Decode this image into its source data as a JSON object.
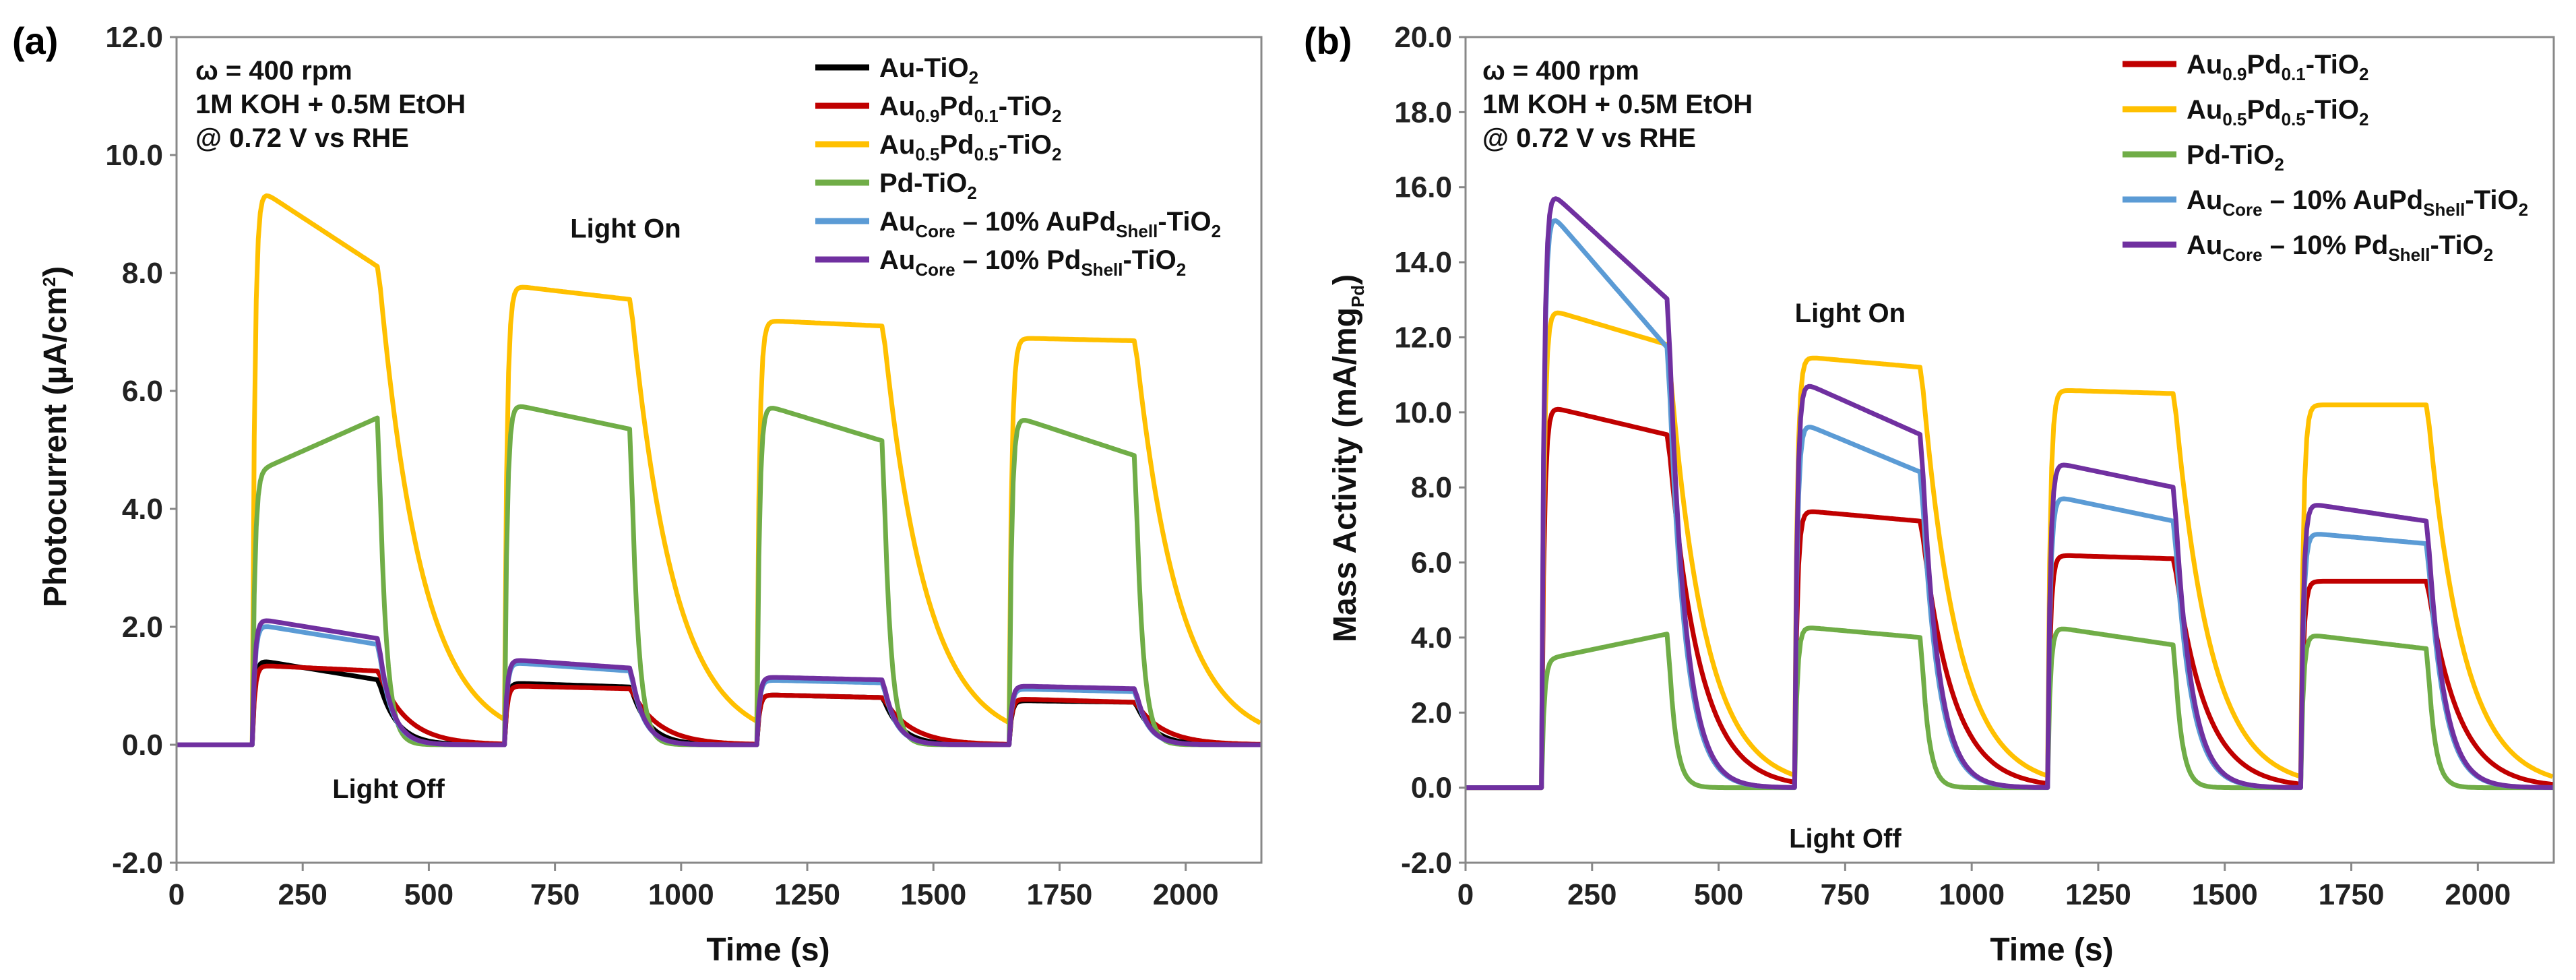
{
  "chart_data": [
    {
      "type": "line",
      "panel": "(a)",
      "xlabel": "Time (s)",
      "ylabel": "Photocurrent (µA/cm²)",
      "xlim": [
        0,
        2150
      ],
      "ylim": [
        -2.0,
        12.0
      ],
      "x_ticks": [
        "0",
        "250",
        "500",
        "750",
        "1000",
        "1250",
        "1500",
        "1750",
        "2000"
      ],
      "y_ticks": [
        "-2.0",
        "0.0",
        "2.0",
        "4.0",
        "6.0",
        "8.0",
        "10.0",
        "12.0"
      ],
      "conditions": [
        "ω = 400 rpm",
        "1M KOH + 0.5M EtOH",
        "@ 0.72 V vs RHE"
      ],
      "annotations": [
        {
          "text": "Light On",
          "x": 890,
          "y": 8.6
        },
        {
          "text": "Light Off",
          "x": 420,
          "y": -0.9
        }
      ],
      "light_on_intervals": [
        [
          150,
          400
        ],
        [
          650,
          900
        ],
        [
          1150,
          1400
        ],
        [
          1650,
          1900
        ]
      ],
      "legend_position": "top-right",
      "series": [
        {
          "name": "Au-TiO2",
          "legend": [
            [
              "Au-TiO",
              ""
            ],
            [
              "2",
              "sub"
            ]
          ],
          "color": "#000000",
          "tau": 35,
          "plateaus": [
            [
              1.45,
              1.1
            ],
            [
              1.05,
              0.98
            ],
            [
              0.85,
              0.8
            ],
            [
              0.75,
              0.72
            ]
          ]
        },
        {
          "name": "Au0.9Pd0.1-TiO2",
          "legend": [
            [
              "Au",
              ""
            ],
            [
              "0.9",
              "sub"
            ],
            [
              "Pd",
              ""
            ],
            [
              "0.1",
              "sub"
            ],
            [
              "-TiO",
              ""
            ],
            [
              "2",
              "sub"
            ]
          ],
          "color": "#c00000",
          "tau": 55,
          "plateaus": [
            [
              1.35,
              1.25
            ],
            [
              1.0,
              0.95
            ],
            [
              0.85,
              0.8
            ],
            [
              0.78,
              0.72
            ]
          ]
        },
        {
          "name": "Au0.5Pd0.5-TiO2",
          "legend": [
            [
              "Au",
              ""
            ],
            [
              "0.5",
              "sub"
            ],
            [
              "Pd",
              ""
            ],
            [
              "0.5",
              "sub"
            ],
            [
              "-TiO",
              ""
            ],
            [
              "2",
              "sub"
            ]
          ],
          "color": "#ffc000",
          "tau": 85,
          "plateaus": [
            [
              9.5,
              8.1
            ],
            [
              7.8,
              7.55
            ],
            [
              7.2,
              7.1
            ],
            [
              6.9,
              6.85
            ]
          ]
        },
        {
          "name": "Pd-TiO2",
          "legend": [
            [
              "Pd-TiO",
              ""
            ],
            [
              "2",
              "sub"
            ]
          ],
          "color": "#70ad47",
          "tau": 14,
          "plateaus": [
            [
              4.6,
              5.55
            ],
            [
              5.8,
              5.35
            ],
            [
              5.8,
              5.15
            ],
            [
              5.6,
              4.9
            ]
          ]
        },
        {
          "name": "AuCore – 10% AuPdShell-TiO2",
          "legend": [
            [
              "Au",
              ""
            ],
            [
              "Core",
              "sub"
            ],
            [
              " – 10% AuPd",
              ""
            ],
            [
              "Shell",
              "sub"
            ],
            [
              "-TiO",
              ""
            ],
            [
              "2",
              "sub"
            ]
          ],
          "color": "#5b9bd5",
          "tau": 25,
          "plateaus": [
            [
              2.05,
              1.7
            ],
            [
              1.4,
              1.25
            ],
            [
              1.1,
              1.05
            ],
            [
              0.95,
              0.9
            ]
          ]
        },
        {
          "name": "AuCore – 10% PdShell-TiO2",
          "legend": [
            [
              "Au",
              ""
            ],
            [
              "Core",
              "sub"
            ],
            [
              " – 10% Pd",
              ""
            ],
            [
              "Shell",
              "sub"
            ],
            [
              "-TiO",
              ""
            ],
            [
              "2",
              "sub"
            ]
          ],
          "color": "#7030a0",
          "tau": 25,
          "plateaus": [
            [
              2.15,
              1.8
            ],
            [
              1.45,
              1.3
            ],
            [
              1.15,
              1.1
            ],
            [
              1.0,
              0.95
            ]
          ]
        }
      ]
    },
    {
      "type": "line",
      "panel": "(b)",
      "xlabel": "Time (s)",
      "ylabel": "Mass Activity (mA/mgPd)",
      "xlim": [
        0,
        2150
      ],
      "ylim": [
        -2.0,
        20.0
      ],
      "x_ticks": [
        "0",
        "250",
        "500",
        "750",
        "1000",
        "1250",
        "1500",
        "1750",
        "2000"
      ],
      "y_ticks": [
        "-2.0",
        "0.0",
        "2.0",
        "4.0",
        "6.0",
        "8.0",
        "10.0",
        "12.0",
        "14.0",
        "16.0",
        "18.0",
        "20.0"
      ],
      "conditions": [
        "ω = 400 rpm",
        "1M KOH + 0.5M EtOH",
        "@ 0.72 V vs RHE"
      ],
      "annotations": [
        {
          "text": "Light On",
          "x": 760,
          "y": 12.4
        },
        {
          "text": "Light Off",
          "x": 750,
          "y": -1.6
        }
      ],
      "light_on_intervals": [
        [
          150,
          400
        ],
        [
          650,
          900
        ],
        [
          1150,
          1400
        ],
        [
          1650,
          1900
        ]
      ],
      "legend_position": "top-right",
      "series": [
        {
          "name": "Au0.9Pd0.1-TiO2",
          "legend": [
            [
              "Au",
              ""
            ],
            [
              "0.9",
              "sub"
            ],
            [
              "Pd",
              ""
            ],
            [
              "0.1",
              "sub"
            ],
            [
              "-TiO",
              ""
            ],
            [
              "2",
              "sub"
            ]
          ],
          "color": "#c00000",
          "tau": 60,
          "plateaus": [
            [
              10.2,
              9.4
            ],
            [
              7.4,
              7.1
            ],
            [
              6.2,
              6.1
            ],
            [
              5.5,
              5.5
            ]
          ]
        },
        {
          "name": "Au0.5Pd0.5-TiO2",
          "legend": [
            [
              "Au",
              ""
            ],
            [
              "0.5",
              "sub"
            ],
            [
              "Pd",
              ""
            ],
            [
              "0.5",
              "sub"
            ],
            [
              "-TiO",
              ""
            ],
            [
              "2",
              "sub"
            ]
          ],
          "color": "#ffc000",
          "tau": 70,
          "plateaus": [
            [
              12.8,
              11.8
            ],
            [
              11.5,
              11.2
            ],
            [
              10.6,
              10.5
            ],
            [
              10.2,
              10.2
            ]
          ]
        },
        {
          "name": "Pd-TiO2",
          "legend": [
            [
              "Pd-TiO",
              ""
            ],
            [
              "2",
              "sub"
            ]
          ],
          "color": "#70ad47",
          "tau": 14,
          "plateaus": [
            [
              3.4,
              4.1
            ],
            [
              4.3,
              4.0
            ],
            [
              4.3,
              3.8
            ],
            [
              4.1,
              3.7
            ]
          ]
        },
        {
          "name": "AuCore – 10% AuPdShell-TiO2",
          "legend": [
            [
              "Au",
              ""
            ],
            [
              "Core",
              "sub"
            ],
            [
              " – 10% AuPd",
              ""
            ],
            [
              "Shell",
              "sub"
            ],
            [
              "-TiO",
              ""
            ],
            [
              "2",
              "sub"
            ]
          ],
          "color": "#5b9bd5",
          "tau": 32,
          "plateaus": [
            [
              15.6,
              11.7
            ],
            [
              9.8,
              8.4
            ],
            [
              7.8,
              7.1
            ],
            [
              6.8,
              6.5
            ]
          ]
        },
        {
          "name": "AuCore – 10% PdShell-TiO2",
          "legend": [
            [
              "Au",
              ""
            ],
            [
              "Core",
              "sub"
            ],
            [
              " – 10% Pd",
              ""
            ],
            [
              "Shell",
              "sub"
            ],
            [
              "-TiO",
              ""
            ],
            [
              "2",
              "sub"
            ]
          ],
          "color": "#7030a0",
          "tau": 32,
          "plateaus": [
            [
              16.1,
              13.0
            ],
            [
              10.9,
              9.4
            ],
            [
              8.7,
              8.0
            ],
            [
              7.6,
              7.1
            ]
          ]
        }
      ]
    }
  ]
}
